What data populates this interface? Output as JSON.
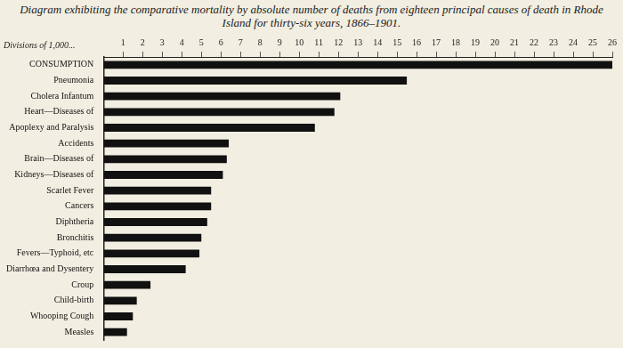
{
  "chart_data": {
    "type": "bar",
    "orientation": "horizontal",
    "title": "Diagram exhibiting the comparative mortality by absolute number of deaths from eighteen principal causes of death in Rhode Island for thirty-six years, 1866–1901.",
    "x_label": "Divisions of 1,000...",
    "categories": [
      "CONSUMPTION",
      "Pneumonia",
      "Cholera Infantum",
      "Heart—Diseases of",
      "Apoplexy and Paralysis",
      "Accidents",
      "Brain—Diseases of",
      "Kidneys—Diseases of",
      "Scarlet Fever",
      "Cancers",
      "Diphtheria",
      "Bronchitis",
      "Fevers—Typhoid, etc",
      "Diarrhœa and Dysentery",
      "Croup",
      "Child-birth",
      "Whooping Cough",
      "Measles"
    ],
    "values": [
      26,
      15.5,
      12.1,
      11.8,
      10.8,
      6.4,
      6.3,
      6.1,
      5.5,
      5.5,
      5.3,
      5.0,
      4.9,
      4.2,
      2.4,
      1.7,
      1.5,
      1.2
    ],
    "color": "#111111",
    "xlim": [
      0,
      26
    ],
    "xticks": [
      1,
      2,
      3,
      4,
      5,
      6,
      7,
      8,
      9,
      10,
      11,
      12,
      13,
      14,
      15,
      16,
      17,
      18,
      19,
      20,
      21,
      22,
      23,
      24,
      25,
      26
    ],
    "grid": false
  }
}
